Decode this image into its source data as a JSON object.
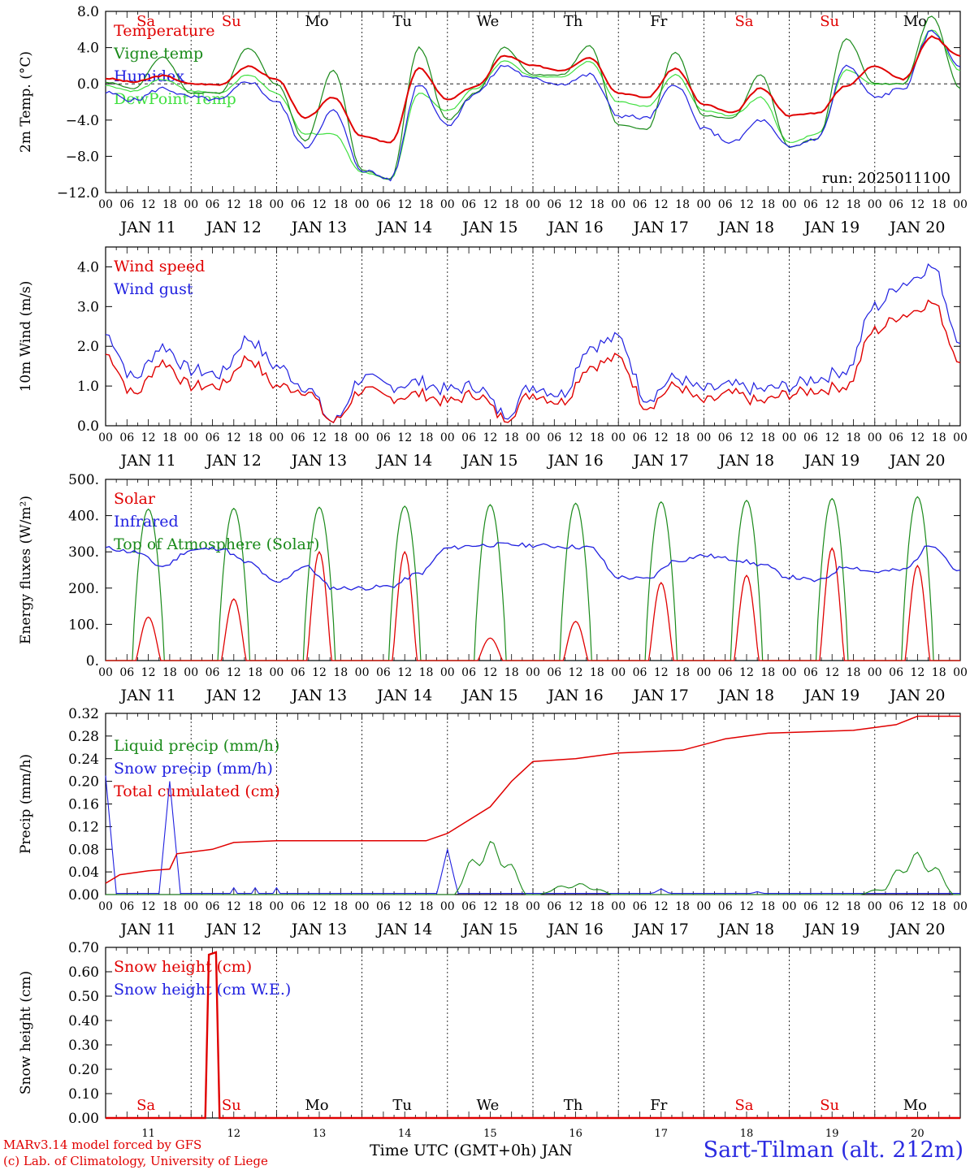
{
  "run_label": "run: 2025011100",
  "footer": {
    "model_line": "MARv3.14 model forced by GFS",
    "credit_line": "(c) Lab. of Climatology, University of Liege",
    "x_title": "Time UTC (GMT+0h) JAN",
    "site": "Sart-Tilman (alt. 212m)"
  },
  "days": {
    "weekday_labels": [
      "Sa",
      "Su",
      "Mo",
      "Tu",
      "We",
      "Th",
      "Fr",
      "Sa",
      "Su",
      "Mo"
    ],
    "weekday_colors": [
      "#e00000",
      "#e00000",
      "#000000",
      "#000000",
      "#000000",
      "#000000",
      "#000000",
      "#e00000",
      "#e00000",
      "#000000"
    ],
    "date_labels": [
      "JAN 11",
      "JAN 12",
      "JAN 13",
      "JAN 14",
      "JAN 15",
      "JAN 16",
      "JAN 17",
      "JAN 18",
      "JAN 19",
      "JAN 20"
    ],
    "bottom_day_numbers": [
      "11",
      "12",
      "13",
      "14",
      "15",
      "16",
      "17",
      "18",
      "19",
      "20"
    ],
    "hour_ticks": [
      "00",
      "06",
      "12",
      "18"
    ],
    "final_tick": "00"
  },
  "colors": {
    "red": "#e00000",
    "green": "#1a8a1a",
    "blue": "#2020e0",
    "light_green": "#40e040"
  },
  "chart_data": [
    {
      "type": "line",
      "ylabel": "2m Temp. (°C)",
      "ylim": [
        -12,
        8
      ],
      "yticks": [
        "8.0",
        "4.0",
        "0.0",
        "−4.0",
        "−8.0",
        "−12.0"
      ],
      "ytick_values": [
        8,
        4,
        0,
        -4,
        -8,
        -12
      ],
      "x_hours": [
        0,
        6,
        12,
        18,
        24,
        30,
        36,
        42,
        48,
        54,
        60,
        66,
        72,
        78,
        84,
        90,
        96,
        102,
        108,
        114,
        120,
        126,
        132,
        138,
        144,
        150,
        156,
        162,
        168,
        174,
        180,
        186,
        192,
        198,
        204,
        210,
        216,
        222,
        228,
        234,
        240
      ],
      "legend": [
        "Temperature",
        "Vigne temp",
        "Humidex",
        "DewPoint Temp"
      ],
      "series": [
        {
          "name": "Temperature",
          "color": "red",
          "values": [
            0.6,
            0.2,
            0.9,
            0.0,
            -0.1,
            1.9,
            0.5,
            -3.8,
            -1.5,
            -5.8,
            -6.5,
            1.7,
            -1.7,
            -0.3,
            3.1,
            2.0,
            1.5,
            2.9,
            -1.0,
            -1.5,
            1.7,
            -2.3,
            -3.2,
            -0.5,
            -3.5,
            -3.2,
            -0.2,
            2.0,
            0.5,
            5.2,
            3.1
          ]
        },
        {
          "name": "Vigne temp",
          "color": "green",
          "values": [
            0.2,
            -0.5,
            3.0,
            -1.0,
            -1.0,
            4.0,
            0.0,
            -6.3,
            1.5,
            -9.5,
            -10.5,
            4.0,
            -4.0,
            -1.0,
            4.0,
            1.0,
            1.0,
            4.2,
            -4.5,
            -5.0,
            3.5,
            -3.5,
            -3.8,
            1.0,
            -7.0,
            -6.0,
            5.0,
            0.0,
            0.0,
            7.5,
            -0.5
          ]
        },
        {
          "name": "Humidex",
          "color": "blue",
          "values": [
            -1.0,
            -1.8,
            -0.5,
            -1.5,
            -1.8,
            0.3,
            -2.0,
            -7.0,
            -3.0,
            -9.5,
            -10.5,
            0.0,
            -4.5,
            -1.0,
            2.0,
            0.5,
            0.0,
            1.0,
            -3.5,
            -3.8,
            0.0,
            -5.0,
            -6.5,
            -4.0,
            -7.0,
            -6.0,
            2.0,
            -1.5,
            -0.5,
            5.8,
            2.0
          ]
        },
        {
          "name": "DewPoint Temp",
          "color": "light_green",
          "values": [
            -0.2,
            -0.8,
            0.5,
            -0.8,
            -1.0,
            1.0,
            -1.0,
            -5.5,
            -5.5,
            -9.8,
            -10.5,
            -1.0,
            -3.0,
            -0.5,
            2.5,
            0.8,
            0.8,
            2.5,
            -2.0,
            -2.5,
            1.0,
            -3.0,
            -3.5,
            -1.5,
            -6.5,
            -5.5,
            1.5,
            0.0,
            0.0,
            6.0,
            1.5
          ]
        }
      ]
    },
    {
      "type": "line",
      "ylabel": "10m Wind (m/s)",
      "ylim": [
        0,
        4.5
      ],
      "yticks": [
        "4.0",
        "3.0",
        "2.0",
        "1.0",
        "0.0"
      ],
      "ytick_values": [
        4,
        3,
        2,
        1,
        0
      ],
      "legend": [
        "Wind speed",
        "Wind gust"
      ],
      "series": [
        {
          "name": "Wind speed",
          "color": "red",
          "values": [
            1.8,
            0.8,
            1.6,
            1.0,
            1.0,
            1.7,
            1.0,
            0.9,
            0.1,
            0.9,
            0.7,
            0.8,
            0.6,
            0.8,
            0.2,
            0.8,
            0.6,
            1.5,
            1.7,
            0.5,
            1.0,
            0.6,
            0.8,
            0.6,
            0.8,
            0.9,
            1.0,
            2.4,
            2.8,
            3.1,
            1.7
          ]
        },
        {
          "name": "Wind gust",
          "color": "blue",
          "values": [
            2.3,
            1.2,
            2.0,
            1.4,
            1.3,
            2.2,
            1.5,
            1.0,
            0.1,
            1.2,
            1.0,
            1.1,
            0.9,
            1.0,
            0.3,
            1.0,
            0.8,
            2.0,
            2.2,
            0.7,
            1.2,
            0.9,
            1.0,
            0.9,
            1.0,
            1.2,
            1.4,
            3.0,
            3.6,
            4.0,
            2.2
          ]
        }
      ]
    },
    {
      "type": "line",
      "ylabel": "Energy fluxes (W/m²)",
      "ylim": [
        0,
        500
      ],
      "yticks": [
        "500.",
        "400.",
        "300.",
        "200.",
        "100.",
        "0."
      ],
      "ytick_values": [
        500,
        400,
        300,
        200,
        100,
        0
      ],
      "legend": [
        "Solar",
        "Infrared",
        "Top of Atmosphere (Solar)"
      ],
      "toa_peaks": [
        418,
        420,
        423,
        426,
        430,
        434,
        438,
        442,
        447,
        452
      ],
      "solar_peaks": [
        120,
        170,
        300,
        300,
        62,
        108,
        215,
        235,
        310,
        262
      ],
      "infrared": [
        310,
        300,
        260,
        305,
        310,
        270,
        215,
        260,
        200,
        200,
        205,
        240,
        310,
        318,
        320,
        318,
        315,
        312,
        230,
        225,
        275,
        290,
        280,
        265,
        230,
        220,
        260,
        245,
        250,
        320,
        245
      ]
    },
    {
      "type": "line",
      "ylabel": "Precip (mm/h)",
      "ylim": [
        0,
        0.32
      ],
      "yticks": [
        "0.32",
        "0.28",
        "0.24",
        "0.20",
        "0.16",
        "0.12",
        "0.08",
        "0.04",
        "0.00"
      ],
      "ytick_values": [
        0.32,
        0.28,
        0.24,
        0.2,
        0.16,
        0.12,
        0.08,
        0.04,
        0.0
      ],
      "legend": [
        "Liquid precip (mm/h)",
        "Snow precip (mm/h)",
        "Total cumulated (cm)"
      ],
      "snow_spikes": [
        [
          0,
          0.21
        ],
        [
          18,
          0.2
        ],
        [
          96,
          0.08
        ],
        [
          156,
          0.01
        ],
        [
          183,
          0.005
        ]
      ],
      "liquid_bumps": [
        [
          108,
          0.095
        ],
        [
          132,
          0.02
        ],
        [
          228,
          0.075
        ],
        [
          222,
          0.015
        ]
      ],
      "cumulated": [
        [
          0,
          0.02
        ],
        [
          4,
          0.035
        ],
        [
          12,
          0.042
        ],
        [
          18,
          0.045
        ],
        [
          20,
          0.072
        ],
        [
          30,
          0.08
        ],
        [
          36,
          0.092
        ],
        [
          48,
          0.095
        ],
        [
          90,
          0.095
        ],
        [
          96,
          0.108
        ],
        [
          108,
          0.155
        ],
        [
          114,
          0.2
        ],
        [
          120,
          0.235
        ],
        [
          132,
          0.24
        ],
        [
          144,
          0.25
        ],
        [
          162,
          0.255
        ],
        [
          174,
          0.275
        ],
        [
          186,
          0.285
        ],
        [
          210,
          0.29
        ],
        [
          222,
          0.3
        ],
        [
          228,
          0.315
        ],
        [
          240,
          0.315
        ]
      ]
    },
    {
      "type": "line",
      "ylabel": "Snow height (cm)",
      "ylim": [
        0,
        0.7
      ],
      "yticks": [
        "0.70",
        "0.60",
        "0.50",
        "0.40",
        "0.30",
        "0.20",
        "0.10",
        "0.00"
      ],
      "ytick_values": [
        0.7,
        0.6,
        0.5,
        0.4,
        0.3,
        0.2,
        0.1,
        0.0
      ],
      "legend": [
        "Snow height (cm)",
        "Snow height (cm W.E.)"
      ],
      "snow_height": [
        [
          0,
          0
        ],
        [
          28,
          0
        ],
        [
          29,
          0.67
        ],
        [
          31,
          0.68
        ],
        [
          32,
          0.0
        ],
        [
          240,
          0
        ]
      ]
    }
  ]
}
